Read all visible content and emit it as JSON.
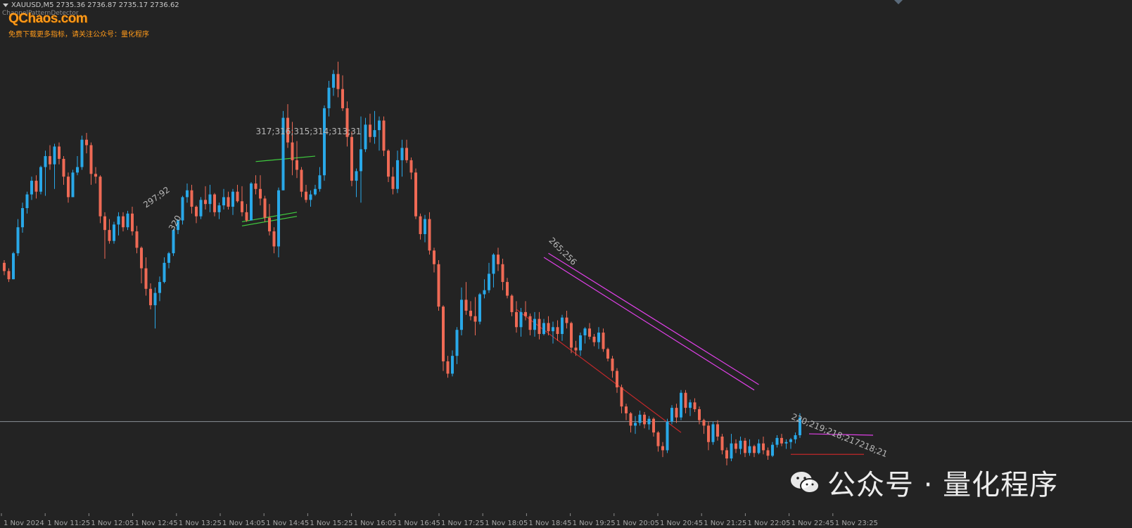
{
  "header": {
    "symbol_line": "XAUUSD,M5  2735.36 2736.87 2735.17 2736.62",
    "indicator_name": "ChannelPatternDetector",
    "brand": "QChaos.com",
    "promo": "免费下载更多指标，请关注公众号：量化程序"
  },
  "watermark": {
    "text": "公众号 · 量化程序",
    "icon": "wechat-icon"
  },
  "colors": {
    "background": "#232323",
    "bull": "#29a8e8",
    "bear": "#ef6a55",
    "magenta": "#e040e8",
    "green": "#3fcf3f",
    "red": "#c0282a",
    "brand": "#ff9a1a"
  },
  "chart_data": {
    "type": "candlestick",
    "symbol": "XAUUSD",
    "timeframe": "M5",
    "ylim": [
      2713,
      2750
    ],
    "time_labels": [
      "1 Nov 2024",
      "1 Nov 11:25",
      "1 Nov 12:05",
      "1 Nov 12:45",
      "1 Nov 13:25",
      "1 Nov 14:05",
      "1 Nov 14:45",
      "1 Nov 15:25",
      "1 Nov 16:05",
      "1 Nov 16:45",
      "1 Nov 17:25",
      "1 Nov 18:05",
      "1 Nov 18:45",
      "1 Nov 19:25",
      "1 Nov 20:05",
      "1 Nov 20:45",
      "1 Nov 21:25",
      "1 Nov 22:05",
      "1 Nov 22:45",
      "1 Nov 23:25"
    ],
    "price_line": 2719.6,
    "candles": [
      [
        2731.2,
        2731.4,
        2730.3,
        2730.6
      ],
      [
        2730.6,
        2730.8,
        2729.8,
        2730.0
      ],
      [
        2730.0,
        2732.0,
        2730.0,
        2731.9
      ],
      [
        2731.9,
        2734.4,
        2731.7,
        2733.8
      ],
      [
        2733.8,
        2735.6,
        2733.4,
        2735.2
      ],
      [
        2735.2,
        2736.4,
        2734.8,
        2736.2
      ],
      [
        2736.2,
        2737.5,
        2735.8,
        2737.2
      ],
      [
        2737.2,
        2737.6,
        2735.9,
        2736.4
      ],
      [
        2736.4,
        2738.3,
        2736.2,
        2738.2
      ],
      [
        2738.2,
        2739.4,
        2736.1,
        2739.0
      ],
      [
        2739.0,
        2739.8,
        2738.0,
        2738.4
      ],
      [
        2738.4,
        2739.9,
        2736.6,
        2739.7
      ],
      [
        2739.7,
        2740.0,
        2738.4,
        2738.8
      ],
      [
        2738.8,
        2739.0,
        2736.9,
        2737.5
      ],
      [
        2737.5,
        2737.8,
        2735.6,
        2736.0
      ],
      [
        2736.0,
        2738.0,
        2736.0,
        2737.8
      ],
      [
        2737.8,
        2739.0,
        2737.6,
        2738.2
      ],
      [
        2738.2,
        2740.5,
        2738.0,
        2740.2
      ],
      [
        2740.2,
        2740.7,
        2739.2,
        2739.8
      ],
      [
        2739.8,
        2740.0,
        2736.9,
        2737.7
      ],
      [
        2737.7,
        2738.2,
        2737.0,
        2737.5
      ],
      [
        2737.5,
        2737.6,
        2734.1,
        2734.6
      ],
      [
        2734.6,
        2734.9,
        2731.5,
        2733.6
      ],
      [
        2733.6,
        2734.4,
        2732.6,
        2732.8
      ],
      [
        2732.8,
        2734.2,
        2732.6,
        2734.0
      ],
      [
        2734.0,
        2734.9,
        2733.2,
        2734.6
      ],
      [
        2734.6,
        2734.9,
        2733.5,
        2733.8
      ],
      [
        2733.8,
        2735.0,
        2733.6,
        2734.8
      ],
      [
        2734.8,
        2735.3,
        2733.2,
        2733.5
      ],
      [
        2733.5,
        2733.9,
        2731.9,
        2732.3
      ],
      [
        2732.3,
        2732.4,
        2729.7,
        2730.8
      ],
      [
        2730.8,
        2731.6,
        2728.8,
        2729.3
      ],
      [
        2729.3,
        2729.7,
        2727.8,
        2728.1
      ],
      [
        2728.1,
        2729.4,
        2726.4,
        2729.0
      ],
      [
        2729.0,
        2730.2,
        2728.4,
        2729.8
      ],
      [
        2729.8,
        2731.6,
        2729.7,
        2731.2
      ],
      [
        2731.2,
        2732.0,
        2730.8,
        2731.9
      ],
      [
        2731.9,
        2733.7,
        2731.7,
        2733.6
      ],
      [
        2733.6,
        2734.4,
        2733.3,
        2734.3
      ],
      [
        2734.3,
        2736.1,
        2734.0,
        2736.0
      ],
      [
        2736.0,
        2737.0,
        2735.6,
        2736.5
      ],
      [
        2736.5,
        2736.9,
        2734.8,
        2735.3
      ],
      [
        2735.3,
        2735.4,
        2734.1,
        2734.6
      ],
      [
        2734.6,
        2736.0,
        2734.4,
        2735.8
      ],
      [
        2735.8,
        2736.8,
        2735.1,
        2735.5
      ],
      [
        2735.5,
        2736.9,
        2734.9,
        2736.2
      ],
      [
        2736.2,
        2736.3,
        2734.6,
        2734.9
      ],
      [
        2734.9,
        2735.6,
        2734.4,
        2735.4
      ],
      [
        2735.4,
        2736.6,
        2735.1,
        2736.0
      ],
      [
        2736.0,
        2736.4,
        2735.1,
        2735.3
      ],
      [
        2735.3,
        2736.6,
        2734.7,
        2736.4
      ],
      [
        2736.4,
        2736.9,
        2735.6,
        2735.7
      ],
      [
        2735.7,
        2736.8,
        2734.6,
        2734.9
      ],
      [
        2734.9,
        2735.5,
        2734.2,
        2734.3
      ],
      [
        2734.3,
        2737.1,
        2734.3,
        2737.0
      ],
      [
        2737.0,
        2737.6,
        2736.2,
        2736.6
      ],
      [
        2736.6,
        2737.6,
        2735.4,
        2735.9
      ],
      [
        2735.9,
        2736.1,
        2734.2,
        2734.5
      ],
      [
        2734.5,
        2735.5,
        2733.2,
        2733.5
      ],
      [
        2733.5,
        2733.8,
        2731.9,
        2732.4
      ],
      [
        2732.4,
        2736.7,
        2731.6,
        2736.5
      ],
      [
        2736.5,
        2742.3,
        2736.5,
        2741.8
      ],
      [
        2741.8,
        2742.8,
        2739.6,
        2740.0
      ],
      [
        2740.0,
        2741.5,
        2737.6,
        2738.7
      ],
      [
        2738.7,
        2740.1,
        2737.4,
        2738.0
      ],
      [
        2738.0,
        2738.2,
        2736.0,
        2736.4
      ],
      [
        2736.4,
        2736.9,
        2735.6,
        2735.8
      ],
      [
        2735.8,
        2736.5,
        2735.3,
        2736.2
      ],
      [
        2736.2,
        2736.9,
        2736.1,
        2736.6
      ],
      [
        2736.6,
        2738.2,
        2736.4,
        2737.6
      ],
      [
        2737.6,
        2742.7,
        2737.2,
        2742.5
      ],
      [
        2742.5,
        2744.5,
        2741.9,
        2744.0
      ],
      [
        2744.0,
        2745.3,
        2743.4,
        2745.0
      ],
      [
        2745.0,
        2745.9,
        2743.3,
        2743.9
      ],
      [
        2743.9,
        2744.9,
        2742.3,
        2742.5
      ],
      [
        2742.5,
        2743.0,
        2739.7,
        2740.4
      ],
      [
        2740.4,
        2740.8,
        2736.8,
        2737.2
      ],
      [
        2737.2,
        2738.1,
        2736.0,
        2737.9
      ],
      [
        2737.9,
        2741.9,
        2735.6,
        2739.5
      ],
      [
        2739.5,
        2741.8,
        2739.3,
        2741.3
      ],
      [
        2741.3,
        2742.1,
        2740.0,
        2740.4
      ],
      [
        2740.4,
        2742.3,
        2739.9,
        2740.9
      ],
      [
        2740.9,
        2741.9,
        2739.4,
        2741.6
      ],
      [
        2741.6,
        2741.9,
        2739.0,
        2739.4
      ],
      [
        2739.4,
        2739.5,
        2737.1,
        2737.5
      ],
      [
        2737.5,
        2738.2,
        2736.2,
        2736.6
      ],
      [
        2736.6,
        2739.4,
        2736.3,
        2738.7
      ],
      [
        2738.7,
        2740.2,
        2737.5,
        2739.6
      ],
      [
        2739.6,
        2740.2,
        2738.5,
        2738.7
      ],
      [
        2738.7,
        2738.9,
        2737.3,
        2737.8
      ],
      [
        2737.8,
        2738.1,
        2734.4,
        2734.6
      ],
      [
        2734.6,
        2734.8,
        2732.9,
        2733.3
      ],
      [
        2733.3,
        2734.7,
        2732.7,
        2734.4
      ],
      [
        2734.4,
        2734.9,
        2731.8,
        2732.1
      ],
      [
        2732.1,
        2732.3,
        2730.5,
        2731.1
      ],
      [
        2731.1,
        2731.4,
        2727.7,
        2728.0
      ],
      [
        2728.0,
        2728.1,
        2723.3,
        2724.0
      ],
      [
        2724.0,
        2724.4,
        2722.8,
        2723.1
      ],
      [
        2723.1,
        2724.8,
        2722.9,
        2724.4
      ],
      [
        2724.4,
        2726.5,
        2723.8,
        2726.3
      ],
      [
        2726.3,
        2729.4,
        2725.9,
        2728.5
      ],
      [
        2728.5,
        2729.8,
        2727.4,
        2727.7
      ],
      [
        2727.7,
        2728.4,
        2727.0,
        2727.3
      ],
      [
        2727.3,
        2728.7,
        2725.9,
        2726.9
      ],
      [
        2726.9,
        2729.0,
        2726.7,
        2728.9
      ],
      [
        2728.9,
        2730.0,
        2728.6,
        2729.2
      ],
      [
        2729.2,
        2731.2,
        2729.0,
        2730.4
      ],
      [
        2730.4,
        2731.9,
        2729.4,
        2731.8
      ],
      [
        2731.8,
        2732.3,
        2730.6,
        2731.1
      ],
      [
        2731.1,
        2731.5,
        2729.2,
        2729.8
      ],
      [
        2729.8,
        2730.1,
        2728.6,
        2728.8
      ],
      [
        2728.8,
        2728.9,
        2727.3,
        2727.6
      ],
      [
        2727.6,
        2728.4,
        2726.1,
        2726.5
      ],
      [
        2726.5,
        2727.9,
        2725.8,
        2727.6
      ],
      [
        2727.6,
        2728.4,
        2727.0,
        2727.3
      ],
      [
        2727.3,
        2727.5,
        2725.9,
        2726.3
      ],
      [
        2726.3,
        2727.6,
        2725.8,
        2727.1
      ],
      [
        2727.1,
        2727.6,
        2725.6,
        2726.0
      ],
      [
        2726.0,
        2727.1,
        2725.9,
        2726.8
      ],
      [
        2726.8,
        2727.3,
        2725.9,
        2726.2
      ],
      [
        2726.2,
        2726.9,
        2725.3,
        2726.5
      ],
      [
        2726.5,
        2727.0,
        2725.5,
        2726.0
      ],
      [
        2726.0,
        2727.4,
        2725.5,
        2727.2
      ],
      [
        2727.2,
        2727.7,
        2726.4,
        2726.8
      ],
      [
        2726.8,
        2726.9,
        2724.6,
        2725.0
      ],
      [
        2725.0,
        2725.5,
        2724.4,
        2724.8
      ],
      [
        2724.8,
        2726.1,
        2724.4,
        2725.9
      ],
      [
        2725.9,
        2726.5,
        2725.3,
        2726.4
      ],
      [
        2726.4,
        2726.8,
        2725.6,
        2725.8
      ],
      [
        2725.8,
        2726.0,
        2725.1,
        2725.4
      ],
      [
        2725.4,
        2726.5,
        2724.9,
        2726.1
      ],
      [
        2726.1,
        2726.4,
        2724.7,
        2724.9
      ],
      [
        2724.9,
        2725.0,
        2724.0,
        2724.2
      ],
      [
        2724.2,
        2724.4,
        2722.8,
        2723.3
      ],
      [
        2723.3,
        2723.5,
        2721.7,
        2722.1
      ],
      [
        2722.1,
        2722.3,
        2720.2,
        2720.7
      ],
      [
        2720.7,
        2720.9,
        2719.7,
        2720.2
      ],
      [
        2720.2,
        2720.3,
        2718.8,
        2719.3
      ],
      [
        2719.3,
        2720.0,
        2718.7,
        2719.5
      ],
      [
        2719.5,
        2720.4,
        2719.3,
        2720.1
      ],
      [
        2720.1,
        2720.3,
        2719.1,
        2719.4
      ],
      [
        2719.4,
        2720.0,
        2719.0,
        2719.8
      ],
      [
        2719.8,
        2719.9,
        2718.5,
        2718.8
      ],
      [
        2718.8,
        2718.9,
        2717.4,
        2717.8
      ],
      [
        2717.8,
        2718.1,
        2717.0,
        2717.5
      ],
      [
        2717.5,
        2719.8,
        2717.3,
        2719.6
      ],
      [
        2719.6,
        2720.8,
        2719.4,
        2720.6
      ],
      [
        2720.6,
        2720.9,
        2719.5,
        2719.9
      ],
      [
        2719.9,
        2721.9,
        2719.7,
        2721.7
      ],
      [
        2721.7,
        2721.9,
        2720.2,
        2720.6
      ],
      [
        2720.6,
        2721.2,
        2720.0,
        2721.0
      ],
      [
        2721.0,
        2721.3,
        2720.3,
        2720.5
      ],
      [
        2720.5,
        2720.7,
        2719.4,
        2719.7
      ],
      [
        2719.7,
        2719.8,
        2718.7,
        2719.3
      ],
      [
        2719.3,
        2719.6,
        2717.5,
        2718.1
      ],
      [
        2718.1,
        2719.6,
        2717.9,
        2719.4
      ],
      [
        2719.4,
        2719.7,
        2718.2,
        2718.5
      ],
      [
        2718.5,
        2718.7,
        2717.2,
        2717.5
      ],
      [
        2717.5,
        2717.7,
        2716.4,
        2716.9
      ],
      [
        2716.9,
        2718.7,
        2716.7,
        2718.0
      ],
      [
        2718.0,
        2718.3,
        2717.3,
        2717.6
      ],
      [
        2717.6,
        2718.5,
        2717.2,
        2718.2
      ],
      [
        2718.2,
        2718.4,
        2717.0,
        2717.3
      ],
      [
        2717.3,
        2718.3,
        2717.1,
        2717.8
      ],
      [
        2717.8,
        2717.9,
        2717.0,
        2717.3
      ],
      [
        2717.3,
        2718.3,
        2717.2,
        2718.0
      ],
      [
        2718.0,
        2718.5,
        2717.2,
        2717.5
      ],
      [
        2717.5,
        2717.7,
        2716.8,
        2717.1
      ],
      [
        2717.1,
        2718.1,
        2717.0,
        2717.9
      ],
      [
        2717.9,
        2718.6,
        2717.7,
        2718.4
      ],
      [
        2718.4,
        2718.7,
        2717.8,
        2718.0
      ],
      [
        2718.0,
        2718.3,
        2717.6,
        2718.1
      ],
      [
        2718.1,
        2718.4,
        2717.6,
        2718.3
      ],
      [
        2718.3,
        2718.8,
        2718.0,
        2718.6
      ],
      [
        2718.6,
        2720.2,
        2718.4,
        2719.9
      ]
    ],
    "annotations": [
      {
        "text": "297;92",
        "candle": 31,
        "price": 2735.2,
        "angle": -35
      },
      {
        "text": "320",
        "candle": 37,
        "price": 2733.5,
        "angle": -60
      },
      {
        "text": "317;316;315;314;313;31",
        "candle": 55,
        "price": 2740.6,
        "angle": 0
      },
      {
        "text": "265;256",
        "candle": 119,
        "price": 2732.8,
        "angle": 45
      },
      {
        "text": "220;219;218;217218;21",
        "candle": 172,
        "price": 2719.8,
        "angle": 22
      }
    ],
    "channels": [
      {
        "name": "green-channel",
        "color": "#3fcf3f",
        "lines": [
          [
            55,
            2738.6,
            68,
            2739.0
          ],
          [
            52,
            2733.9,
            64,
            2734.6
          ],
          [
            52,
            2734.2,
            64,
            2734.9
          ]
        ]
      },
      {
        "name": "magenta-channel",
        "color": "#e040e8",
        "lines": [
          [
            118,
            2731.6,
            164,
            2721.9
          ],
          [
            119,
            2731.9,
            165,
            2722.3
          ]
        ]
      },
      {
        "name": "red-channel",
        "color": "#c0282a",
        "lines": [
          [
            112,
            2727.8,
            148,
            2718.8
          ],
          [
            172,
            2717.2,
            188,
            2717.2
          ]
        ]
      },
      {
        "name": "small-magenta",
        "color": "#e040e8",
        "lines": [
          [
            176,
            2718.7,
            190,
            2718.6
          ]
        ]
      }
    ]
  }
}
